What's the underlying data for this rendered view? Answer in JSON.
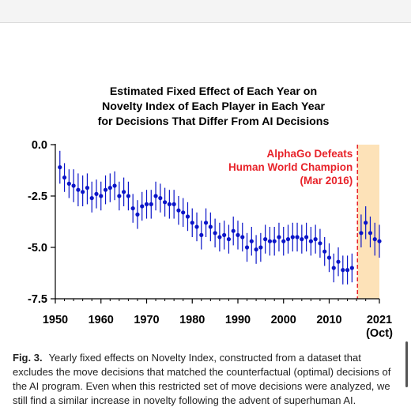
{
  "chart_data": {
    "type": "scatter",
    "title_lines": [
      "Estimated Fixed Effect of Each Year on",
      "Novelty Index of Each Player in Each Year",
      "for Decisions That Differ From AI Decisions"
    ],
    "xlabel": "",
    "ylabel": "",
    "xlim": [
      1950,
      2021
    ],
    "ylim": [
      -7.5,
      0.0
    ],
    "x_ticks": [
      "1950",
      "1960",
      "1970",
      "1980",
      "1990",
      "2000",
      "2010",
      "2021"
    ],
    "x_tick_values": [
      1950,
      1960,
      1970,
      1980,
      1990,
      2000,
      2010,
      2021
    ],
    "x_tick_sub": "(Oct)",
    "y_ticks": [
      "0.0",
      "-2.5",
      "-5.0",
      "-7.5"
    ],
    "y_tick_values": [
      0,
      -2.5,
      -5,
      -7.5
    ],
    "grid": false,
    "series": [
      {
        "color": "#0a14c8",
        "points": [
          {
            "x": 1951,
            "y": -1.1,
            "lo": -1.9,
            "hi": -0.3
          },
          {
            "x": 1952,
            "y": -1.6,
            "lo": -2.3,
            "hi": -0.9
          },
          {
            "x": 1953,
            "y": -1.9,
            "lo": -2.6,
            "hi": -1.2
          },
          {
            "x": 1954,
            "y": -2.0,
            "lo": -2.8,
            "hi": -1.2
          },
          {
            "x": 1955,
            "y": -2.2,
            "lo": -3.0,
            "hi": -1.4
          },
          {
            "x": 1956,
            "y": -2.3,
            "lo": -3.0,
            "hi": -1.5
          },
          {
            "x": 1957,
            "y": -2.1,
            "lo": -2.9,
            "hi": -1.4
          },
          {
            "x": 1958,
            "y": -2.6,
            "lo": -3.3,
            "hi": -1.8
          },
          {
            "x": 1959,
            "y": -2.4,
            "lo": -3.1,
            "hi": -1.7
          },
          {
            "x": 1960,
            "y": -2.5,
            "lo": -3.2,
            "hi": -1.8
          },
          {
            "x": 1961,
            "y": -2.2,
            "lo": -2.9,
            "hi": -1.5
          },
          {
            "x": 1962,
            "y": -2.1,
            "lo": -2.8,
            "hi": -1.4
          },
          {
            "x": 1963,
            "y": -2.0,
            "lo": -2.7,
            "hi": -1.3
          },
          {
            "x": 1964,
            "y": -2.5,
            "lo": -3.2,
            "hi": -1.8
          },
          {
            "x": 1965,
            "y": -2.3,
            "lo": -3.0,
            "hi": -1.6
          },
          {
            "x": 1966,
            "y": -2.5,
            "lo": -3.2,
            "hi": -1.8
          },
          {
            "x": 1967,
            "y": -3.1,
            "lo": -3.8,
            "hi": -2.4
          },
          {
            "x": 1968,
            "y": -3.4,
            "lo": -4.1,
            "hi": -2.7
          },
          {
            "x": 1969,
            "y": -3.0,
            "lo": -3.7,
            "hi": -2.3
          },
          {
            "x": 1970,
            "y": -2.9,
            "lo": -3.6,
            "hi": -2.2
          },
          {
            "x": 1971,
            "y": -2.9,
            "lo": -3.6,
            "hi": -2.2
          },
          {
            "x": 1972,
            "y": -2.5,
            "lo": -3.2,
            "hi": -1.8
          },
          {
            "x": 1973,
            "y": -2.6,
            "lo": -3.3,
            "hi": -1.9
          },
          {
            "x": 1974,
            "y": -2.8,
            "lo": -3.5,
            "hi": -2.1
          },
          {
            "x": 1975,
            "y": -2.9,
            "lo": -3.6,
            "hi": -2.2
          },
          {
            "x": 1976,
            "y": -2.9,
            "lo": -3.6,
            "hi": -2.2
          },
          {
            "x": 1977,
            "y": -3.2,
            "lo": -3.9,
            "hi": -2.5
          },
          {
            "x": 1978,
            "y": -3.3,
            "lo": -4.0,
            "hi": -2.6
          },
          {
            "x": 1979,
            "y": -3.5,
            "lo": -4.2,
            "hi": -2.8
          },
          {
            "x": 1980,
            "y": -3.8,
            "lo": -4.5,
            "hi": -3.1
          },
          {
            "x": 1981,
            "y": -4.0,
            "lo": -4.7,
            "hi": -3.3
          },
          {
            "x": 1982,
            "y": -4.4,
            "lo": -5.1,
            "hi": -3.7
          },
          {
            "x": 1983,
            "y": -3.8,
            "lo": -4.5,
            "hi": -3.1
          },
          {
            "x": 1984,
            "y": -4.0,
            "lo": -4.7,
            "hi": -3.3
          },
          {
            "x": 1985,
            "y": -4.3,
            "lo": -5.0,
            "hi": -3.6
          },
          {
            "x": 1986,
            "y": -4.5,
            "lo": -5.2,
            "hi": -3.8
          },
          {
            "x": 1987,
            "y": -4.4,
            "lo": -5.1,
            "hi": -3.7
          },
          {
            "x": 1988,
            "y": -4.6,
            "lo": -5.3,
            "hi": -3.9
          },
          {
            "x": 1989,
            "y": -4.2,
            "lo": -4.9,
            "hi": -3.5
          },
          {
            "x": 1990,
            "y": -4.4,
            "lo": -5.1,
            "hi": -3.7
          },
          {
            "x": 1991,
            "y": -4.5,
            "lo": -5.2,
            "hi": -3.8
          },
          {
            "x": 1992,
            "y": -5.0,
            "lo": -5.7,
            "hi": -4.3
          },
          {
            "x": 1993,
            "y": -4.7,
            "lo": -5.4,
            "hi": -4.0
          },
          {
            "x": 1994,
            "y": -5.1,
            "lo": -5.8,
            "hi": -4.4
          },
          {
            "x": 1995,
            "y": -5.0,
            "lo": -5.7,
            "hi": -4.3
          },
          {
            "x": 1996,
            "y": -4.6,
            "lo": -5.3,
            "hi": -3.9
          },
          {
            "x": 1997,
            "y": -4.7,
            "lo": -5.4,
            "hi": -4.0
          },
          {
            "x": 1998,
            "y": -4.7,
            "lo": -5.4,
            "hi": -4.0
          },
          {
            "x": 1999,
            "y": -4.5,
            "lo": -5.2,
            "hi": -3.8
          },
          {
            "x": 2000,
            "y": -4.7,
            "lo": -5.4,
            "hi": -4.0
          },
          {
            "x": 2001,
            "y": -4.6,
            "lo": -5.3,
            "hi": -3.9
          },
          {
            "x": 2002,
            "y": -4.5,
            "lo": -5.2,
            "hi": -3.8
          },
          {
            "x": 2003,
            "y": -4.5,
            "lo": -5.2,
            "hi": -3.8
          },
          {
            "x": 2004,
            "y": -4.6,
            "lo": -5.3,
            "hi": -3.9
          },
          {
            "x": 2005,
            "y": -4.5,
            "lo": -5.2,
            "hi": -3.8
          },
          {
            "x": 2006,
            "y": -4.7,
            "lo": -5.4,
            "hi": -4.0
          },
          {
            "x": 2007,
            "y": -4.6,
            "lo": -5.3,
            "hi": -3.9
          },
          {
            "x": 2008,
            "y": -4.8,
            "lo": -5.5,
            "hi": -4.1
          },
          {
            "x": 2009,
            "y": -5.2,
            "lo": -5.9,
            "hi": -4.5
          },
          {
            "x": 2010,
            "y": -5.5,
            "lo": -6.2,
            "hi": -4.8
          },
          {
            "x": 2011,
            "y": -6.0,
            "lo": -6.7,
            "hi": -5.3
          },
          {
            "x": 2012,
            "y": -5.7,
            "lo": -6.4,
            "hi": -5.0
          },
          {
            "x": 2013,
            "y": -6.1,
            "lo": -6.8,
            "hi": -5.4
          },
          {
            "x": 2014,
            "y": -6.1,
            "lo": -6.8,
            "hi": -5.4
          },
          {
            "x": 2015,
            "y": -6.0,
            "lo": -6.7,
            "hi": -5.3
          },
          {
            "x": 2017,
            "y": -4.3,
            "lo": -5.0,
            "hi": -3.4
          },
          {
            "x": 2018,
            "y": -3.8,
            "lo": -4.6,
            "hi": -3.0
          },
          {
            "x": 2019,
            "y": -4.3,
            "lo": -5.0,
            "hi": -3.5
          },
          {
            "x": 2020,
            "y": -4.6,
            "lo": -5.4,
            "hi": -3.8
          },
          {
            "x": 2021,
            "y": -4.7,
            "lo": -5.5,
            "hi": -3.9
          }
        ]
      }
    ],
    "event": {
      "x": 2016.2,
      "label_lines": [
        "AlphaGo Defeats",
        "Human World Champion",
        "(Mar 2016)"
      ],
      "color": "#e8232a",
      "shade_from": 2016.2,
      "shade_to": 2021,
      "shade_color": "#fde2b8"
    }
  },
  "caption": {
    "label": "Fig. 3.",
    "text": "Yearly fixed effects on Novelty Index, constructed from a dataset that excludes the move decisions that matched the counterfactual (optimal) decisions of the AI program. Even when this restricted set of move decisions were analyzed, we still find a similar increase in novelty following the advent of superhuman AI."
  }
}
